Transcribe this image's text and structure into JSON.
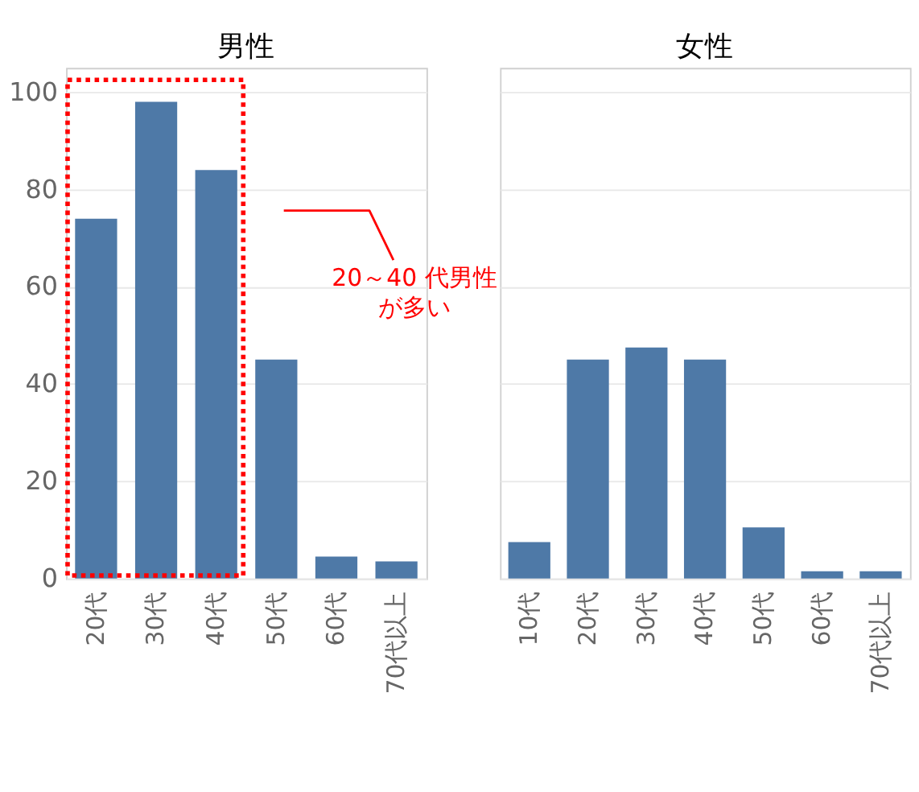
{
  "chart_data": [
    {
      "type": "bar",
      "title": "男性",
      "categories": [
        "20代",
        "30代",
        "40代",
        "50代",
        "60代",
        "70代以上"
      ],
      "values": [
        74,
        98,
        84,
        45,
        4.5,
        3.5
      ],
      "color": "#4e79a7",
      "ylim": [
        0,
        105
      ],
      "yticks": [
        0,
        20,
        40,
        60,
        80,
        100
      ],
      "grid": "y",
      "annotations": [
        "20～40 代男性が多い"
      ]
    },
    {
      "type": "bar",
      "title": "女性",
      "categories": [
        "10代",
        "20代",
        "30代",
        "40代",
        "50代",
        "60代",
        "70代以上"
      ],
      "values": [
        7.5,
        45,
        47.5,
        45,
        10.5,
        1.5,
        1.5
      ],
      "color": "#4e79a7",
      "ylim": [
        0,
        105
      ],
      "yticks": [
        0,
        20,
        40,
        60,
        80,
        100
      ],
      "grid": "y",
      "tick_labels": "x"
    }
  ]
}
